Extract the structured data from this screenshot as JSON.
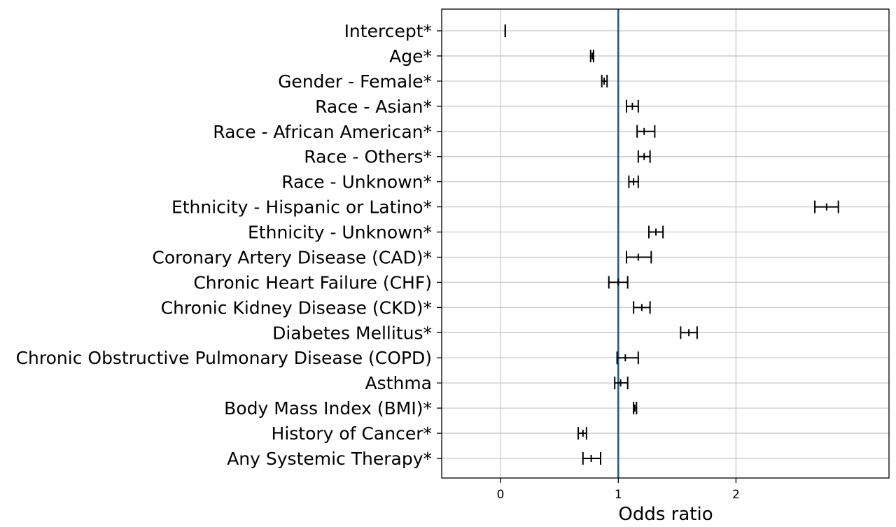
{
  "chart_data": {
    "type": "forest",
    "xlabel": "Odds ratio",
    "xlim": [
      -0.5,
      3.3
    ],
    "xticks": [
      0,
      1,
      2
    ],
    "reference_line": 1,
    "reference_line_color": "#1f5f8b",
    "grid": true,
    "error_bar_color": "#000000",
    "rows": [
      {
        "label": "Intercept*",
        "value": 0.04,
        "lower": 0.04,
        "upper": 0.04
      },
      {
        "label": "Age*",
        "value": 0.78,
        "lower": 0.765,
        "upper": 0.79
      },
      {
        "label": "Gender - Female*",
        "value": 0.88,
        "lower": 0.86,
        "upper": 0.905
      },
      {
        "label": "Race - Asian*",
        "value": 1.12,
        "lower": 1.07,
        "upper": 1.17
      },
      {
        "label": "Race - African American*",
        "value": 1.22,
        "lower": 1.16,
        "upper": 1.31
      },
      {
        "label": "Race - Others*",
        "value": 1.22,
        "lower": 1.17,
        "upper": 1.27
      },
      {
        "label": "Race - Unknown*",
        "value": 1.13,
        "lower": 1.09,
        "upper": 1.17
      },
      {
        "label": "Ethnicity - Hispanic or Latino*",
        "value": 2.77,
        "lower": 2.67,
        "upper": 2.87
      },
      {
        "label": "Ethnicity - Unknown*",
        "value": 1.32,
        "lower": 1.26,
        "upper": 1.38
      },
      {
        "label": "Coronary Artery Disease (CAD)*",
        "value": 1.17,
        "lower": 1.07,
        "upper": 1.28
      },
      {
        "label": "Chronic Heart Failure (CHF)",
        "value": 1.0,
        "lower": 0.92,
        "upper": 1.08
      },
      {
        "label": "Chronic Kidney Disease (CKD)*",
        "value": 1.2,
        "lower": 1.13,
        "upper": 1.27
      },
      {
        "label": "Diabetes Mellitus*",
        "value": 1.6,
        "lower": 1.53,
        "upper": 1.67
      },
      {
        "label": "Chronic Obstructive Pulmonary Disease (COPD)",
        "value": 1.06,
        "lower": 0.99,
        "upper": 1.17
      },
      {
        "label": "Asthma",
        "value": 1.02,
        "lower": 0.97,
        "upper": 1.08
      },
      {
        "label": "Body Mass Index (BMI)*",
        "value": 1.14,
        "lower": 1.13,
        "upper": 1.155
      },
      {
        "label": "History of Cancer*",
        "value": 0.7,
        "lower": 0.66,
        "upper": 0.73
      },
      {
        "label": "Any Systemic Therapy*",
        "value": 0.77,
        "lower": 0.7,
        "upper": 0.85
      }
    ]
  }
}
